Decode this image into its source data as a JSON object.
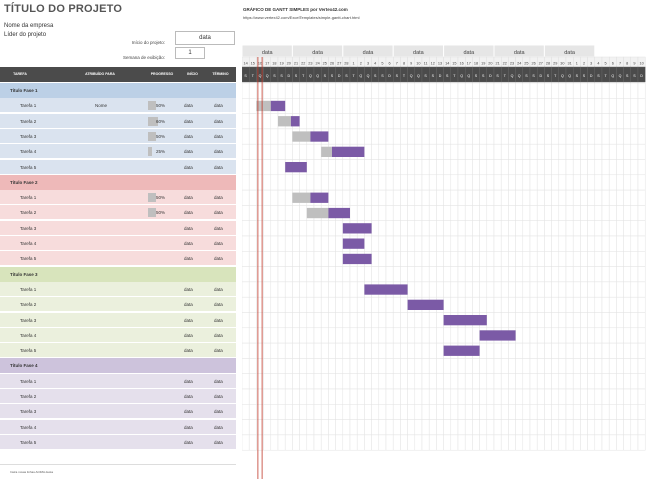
{
  "header": {
    "title": "TÍTULO DO PROJETO",
    "company": "Nome da empresa",
    "lead": "Líder do projeto",
    "start_label": "Início do projeto:",
    "start_value": "data",
    "week_label": "Semana de exibição:",
    "week_value": "1"
  },
  "gantt_header": {
    "title": "GRÁFICO DE GANTT SIMPLES por Vertex42.com",
    "url": "https://www.vertex42.com/ExcelTemplates/simple-gantt-chart.html",
    "week_labels": [
      "data",
      "data",
      "data",
      "data",
      "data",
      "data",
      "data"
    ],
    "day_numbers": [
      "14",
      "15",
      "16",
      "17",
      "18",
      "19",
      "20",
      "21",
      "22",
      "23",
      "24",
      "25",
      "26",
      "27",
      "28",
      "1",
      "2",
      "3",
      "4",
      "5",
      "6",
      "7",
      "8",
      "9",
      "10",
      "11",
      "12",
      "13",
      "14",
      "15",
      "16",
      "17",
      "18",
      "19",
      "20",
      "21",
      "22",
      "23",
      "24",
      "25",
      "26",
      "27",
      "28",
      "29",
      "30",
      "31",
      "1",
      "2",
      "3",
      "4",
      "5",
      "6",
      "7",
      "8",
      "9",
      "10"
    ],
    "day_letters": [
      "S",
      "T",
      "Q",
      "Q",
      "S",
      "S",
      "D",
      "S",
      "T",
      "Q",
      "Q",
      "S",
      "S",
      "D",
      "S",
      "T",
      "Q",
      "Q",
      "S",
      "S",
      "D",
      "S",
      "T",
      "Q",
      "Q",
      "S",
      "S",
      "D",
      "S",
      "T",
      "Q",
      "Q",
      "S",
      "S",
      "D",
      "S",
      "T",
      "Q",
      "Q",
      "S",
      "S",
      "D",
      "S",
      "T",
      "Q",
      "Q",
      "S",
      "S",
      "D",
      "S",
      "T",
      "Q",
      "Q",
      "S",
      "S",
      "D"
    ]
  },
  "columns": {
    "task": "TAREFA",
    "assigned": "ATRIBUÍDO PARA",
    "progress": "PROGRESSO",
    "start": "INÍCIO",
    "end": "TÉRMINO"
  },
  "footer": "Insira novas linhas ACIMA desta",
  "colors": {
    "header_bg": "#4b4b4b",
    "phase1": "#dae3ef",
    "phase1_head": "#bcd0e6",
    "phase2": "#f7dcdc",
    "phase2_head": "#eeb9b9",
    "phase3": "#ebf0dd",
    "phase3_head": "#d8e4bc",
    "phase4": "#e5e0ec",
    "phase4_head": "#cdc3dc",
    "bar": "#7b5aa6",
    "bar_done": "#bfbfbf",
    "today": "#c0392b"
  },
  "phases": [
    {
      "name": "Título Fase 1",
      "tasks": [
        {
          "name": "Tarefa 1",
          "assigned": "Nome",
          "progress": 50,
          "progress_label": "50%",
          "start": "data",
          "end": "data",
          "bar_start": 2,
          "bar_len": 4
        },
        {
          "name": "Tarefa 2",
          "assigned": "",
          "progress": 60,
          "progress_label": "60%",
          "start": "data",
          "end": "data",
          "bar_start": 5,
          "bar_len": 3
        },
        {
          "name": "Tarefa 3",
          "assigned": "",
          "progress": 50,
          "progress_label": "50%",
          "start": "data",
          "end": "data",
          "bar_start": 7,
          "bar_len": 5
        },
        {
          "name": "Tarefa 4",
          "assigned": "",
          "progress": 25,
          "progress_label": "25%",
          "start": "data",
          "end": "data",
          "bar_start": 11,
          "bar_len": 6
        },
        {
          "name": "Tarefa 5",
          "assigned": "",
          "progress": null,
          "progress_label": "",
          "start": "data",
          "end": "data",
          "bar_start": 6,
          "bar_len": 3
        }
      ]
    },
    {
      "name": "Título Fase 2",
      "tasks": [
        {
          "name": "Tarefa 1",
          "assigned": "",
          "progress": 50,
          "progress_label": "50%",
          "start": "data",
          "end": "data",
          "bar_start": 7,
          "bar_len": 5
        },
        {
          "name": "Tarefa 2",
          "assigned": "",
          "progress": 50,
          "progress_label": "50%",
          "start": "data",
          "end": "data",
          "bar_start": 9,
          "bar_len": 6
        },
        {
          "name": "Tarefa 3",
          "assigned": "",
          "progress": null,
          "progress_label": "",
          "start": "data",
          "end": "data",
          "bar_start": 14,
          "bar_len": 4
        },
        {
          "name": "Tarefa 4",
          "assigned": "",
          "progress": null,
          "progress_label": "",
          "start": "data",
          "end": "data",
          "bar_start": 14,
          "bar_len": 3
        },
        {
          "name": "Tarefa 5",
          "assigned": "",
          "progress": null,
          "progress_label": "",
          "start": "data",
          "end": "data",
          "bar_start": 14,
          "bar_len": 4
        }
      ]
    },
    {
      "name": "Título Fase 3",
      "tasks": [
        {
          "name": "Tarefa 1",
          "assigned": "",
          "progress": null,
          "progress_label": "",
          "start": "data",
          "end": "data",
          "bar_start": 17,
          "bar_len": 6
        },
        {
          "name": "Tarefa 2",
          "assigned": "",
          "progress": null,
          "progress_label": "",
          "start": "data",
          "end": "data",
          "bar_start": 23,
          "bar_len": 5
        },
        {
          "name": "Tarefa 3",
          "assigned": "",
          "progress": null,
          "progress_label": "",
          "start": "data",
          "end": "data",
          "bar_start": 28,
          "bar_len": 6
        },
        {
          "name": "Tarefa 4",
          "assigned": "",
          "progress": null,
          "progress_label": "",
          "start": "data",
          "end": "data",
          "bar_start": 33,
          "bar_len": 5
        },
        {
          "name": "Tarefa 5",
          "assigned": "",
          "progress": null,
          "progress_label": "",
          "start": "data",
          "end": "data",
          "bar_start": 28,
          "bar_len": 5
        }
      ]
    },
    {
      "name": "Título Fase 4",
      "tasks": [
        {
          "name": "Tarefa 1",
          "assigned": "",
          "progress": null,
          "progress_label": "",
          "start": "data",
          "end": "data",
          "bar_start": null,
          "bar_len": 0
        },
        {
          "name": "Tarefa 2",
          "assigned": "",
          "progress": null,
          "progress_label": "",
          "start": "data",
          "end": "data",
          "bar_start": null,
          "bar_len": 0
        },
        {
          "name": "Tarefa 3",
          "assigned": "",
          "progress": null,
          "progress_label": "",
          "start": "data",
          "end": "data",
          "bar_start": null,
          "bar_len": 0
        },
        {
          "name": "Tarefa 4",
          "assigned": "",
          "progress": null,
          "progress_label": "",
          "start": "data",
          "end": "data",
          "bar_start": null,
          "bar_len": 0
        },
        {
          "name": "Tarefa 5",
          "assigned": "",
          "progress": null,
          "progress_label": "",
          "start": "data",
          "end": "data",
          "bar_start": null,
          "bar_len": 0
        }
      ]
    }
  ]
}
